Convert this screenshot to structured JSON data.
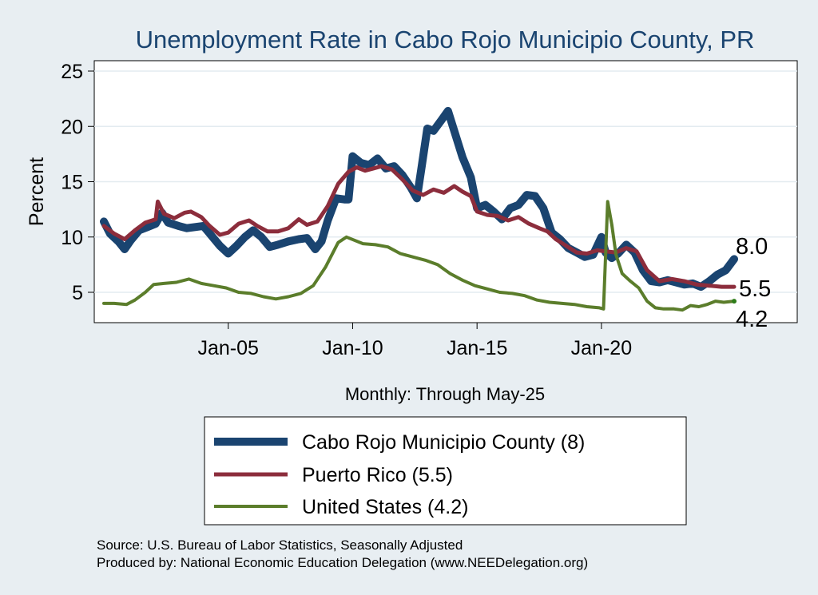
{
  "chart_data": {
    "type": "line",
    "title": "Unemployment Rate in Cabo Rojo Municipio  County, PR",
    "ylabel": "Percent",
    "xlabel": "Monthly: Through May-25",
    "x_range": [
      "2000-01",
      "2025-05"
    ],
    "ylim": [
      3,
      26
    ],
    "yticks": [
      5,
      10,
      15,
      20,
      25
    ],
    "xticks": [
      {
        "label": "Jan-05",
        "date": "2005-01"
      },
      {
        "label": "Jan-10",
        "date": "2010-01"
      },
      {
        "label": "Jan-15",
        "date": "2015-01"
      },
      {
        "label": "Jan-20",
        "date": "2020-01"
      }
    ],
    "grid": "horizontal",
    "legend_position": "bottom",
    "series": [
      {
        "name": "Cabo Rojo Municipio  County (8)",
        "color": "#1a4470",
        "end_label": "8.0",
        "points": [
          [
            "2000-01",
            11.4
          ],
          [
            "2000-04",
            10.3
          ],
          [
            "2000-08",
            9.6
          ],
          [
            "2000-11",
            8.9
          ],
          [
            "2001-02",
            9.7
          ],
          [
            "2001-06",
            10.6
          ],
          [
            "2001-10",
            10.9
          ],
          [
            "2002-02",
            11.2
          ],
          [
            "2002-05",
            12.2
          ],
          [
            "2002-08",
            11.3
          ],
          [
            "2003-01",
            11.0
          ],
          [
            "2003-05",
            10.8
          ],
          [
            "2003-09",
            10.9
          ],
          [
            "2004-01",
            11.0
          ],
          [
            "2004-05",
            10.1
          ],
          [
            "2004-09",
            9.2
          ],
          [
            "2005-01",
            8.5
          ],
          [
            "2005-05",
            9.2
          ],
          [
            "2005-09",
            10.0
          ],
          [
            "2006-01",
            10.6
          ],
          [
            "2006-05",
            10.0
          ],
          [
            "2006-09",
            9.1
          ],
          [
            "2007-01",
            9.3
          ],
          [
            "2007-06",
            9.6
          ],
          [
            "2007-11",
            9.8
          ],
          [
            "2008-03",
            9.9
          ],
          [
            "2008-07",
            8.9
          ],
          [
            "2008-10",
            9.6
          ],
          [
            "2009-01",
            11.5
          ],
          [
            "2009-05",
            13.5
          ],
          [
            "2009-09",
            13.4
          ],
          [
            "2009-11",
            13.4
          ],
          [
            "2010-01",
            17.3
          ],
          [
            "2010-05",
            16.7
          ],
          [
            "2010-09",
            16.5
          ],
          [
            "2011-01",
            17.1
          ],
          [
            "2011-05",
            16.2
          ],
          [
            "2011-09",
            16.4
          ],
          [
            "2012-01",
            15.6
          ],
          [
            "2012-05",
            14.5
          ],
          [
            "2012-08",
            13.5
          ],
          [
            "2012-10",
            16.0
          ],
          [
            "2013-01",
            19.8
          ],
          [
            "2013-04",
            19.6
          ],
          [
            "2013-08",
            20.6
          ],
          [
            "2013-11",
            21.4
          ],
          [
            "2014-02",
            19.6
          ],
          [
            "2014-06",
            17.2
          ],
          [
            "2014-10",
            15.4
          ],
          [
            "2015-01",
            12.6
          ],
          [
            "2015-05",
            12.9
          ],
          [
            "2015-09",
            12.3
          ],
          [
            "2016-01",
            11.6
          ],
          [
            "2016-05",
            12.6
          ],
          [
            "2016-09",
            12.9
          ],
          [
            "2017-01",
            13.8
          ],
          [
            "2017-05",
            13.7
          ],
          [
            "2017-09",
            12.6
          ],
          [
            "2018-01",
            10.4
          ],
          [
            "2018-05",
            9.8
          ],
          [
            "2018-09",
            9.0
          ],
          [
            "2019-01",
            8.6
          ],
          [
            "2019-05",
            8.2
          ],
          [
            "2019-09",
            8.4
          ],
          [
            "2020-01",
            10.0
          ],
          [
            "2020-03",
            8.6
          ],
          [
            "2020-06",
            8.1
          ],
          [
            "2020-09",
            8.5
          ],
          [
            "2021-01",
            9.3
          ],
          [
            "2021-05",
            8.6
          ],
          [
            "2021-09",
            7.0
          ],
          [
            "2022-01",
            6.0
          ],
          [
            "2022-05",
            5.9
          ],
          [
            "2022-09",
            6.1
          ],
          [
            "2023-01",
            5.9
          ],
          [
            "2023-05",
            5.7
          ],
          [
            "2023-09",
            5.8
          ],
          [
            "2024-01",
            5.5
          ],
          [
            "2024-05",
            6.0
          ],
          [
            "2024-09",
            6.6
          ],
          [
            "2025-01",
            7.0
          ],
          [
            "2025-05",
            8.0
          ]
        ]
      },
      {
        "name": "Puerto Rico (5.5)",
        "color": "#8c2d3c",
        "end_label": "5.5",
        "points": [
          [
            "2000-01",
            11.0
          ],
          [
            "2000-06",
            10.3
          ],
          [
            "2000-11",
            9.8
          ],
          [
            "2001-04",
            10.6
          ],
          [
            "2001-09",
            11.3
          ],
          [
            "2002-02",
            11.6
          ],
          [
            "2002-03",
            13.2
          ],
          [
            "2002-06",
            12.1
          ],
          [
            "2002-11",
            11.7
          ],
          [
            "2003-04",
            12.2
          ],
          [
            "2003-07",
            12.3
          ],
          [
            "2003-12",
            11.8
          ],
          [
            "2004-04",
            11.0
          ],
          [
            "2004-09",
            10.2
          ],
          [
            "2005-01",
            10.4
          ],
          [
            "2005-06",
            11.2
          ],
          [
            "2005-11",
            11.5
          ],
          [
            "2006-03",
            11.0
          ],
          [
            "2006-08",
            10.5
          ],
          [
            "2007-01",
            10.5
          ],
          [
            "2007-06",
            10.8
          ],
          [
            "2007-11",
            11.6
          ],
          [
            "2008-03",
            11.1
          ],
          [
            "2008-08",
            11.4
          ],
          [
            "2009-01",
            12.8
          ],
          [
            "2009-06",
            14.8
          ],
          [
            "2009-11",
            15.9
          ],
          [
            "2010-03",
            16.3
          ],
          [
            "2010-07",
            16.0
          ],
          [
            "2010-11",
            16.2
          ],
          [
            "2011-03",
            16.4
          ],
          [
            "2011-08",
            16.1
          ],
          [
            "2012-01",
            15.2
          ],
          [
            "2012-06",
            14.2
          ],
          [
            "2012-11",
            13.8
          ],
          [
            "2013-04",
            14.3
          ],
          [
            "2013-09",
            14.0
          ],
          [
            "2014-02",
            14.6
          ],
          [
            "2014-06",
            14.1
          ],
          [
            "2014-10",
            13.7
          ],
          [
            "2015-01",
            12.3
          ],
          [
            "2015-06",
            12.0
          ],
          [
            "2015-11",
            11.9
          ],
          [
            "2016-04",
            11.5
          ],
          [
            "2016-09",
            11.8
          ],
          [
            "2017-02",
            11.2
          ],
          [
            "2017-07",
            10.8
          ],
          [
            "2017-11",
            10.5
          ],
          [
            "2018-03",
            9.8
          ],
          [
            "2018-08",
            9.2
          ],
          [
            "2019-01",
            8.6
          ],
          [
            "2019-06",
            8.5
          ],
          [
            "2019-11",
            8.8
          ],
          [
            "2020-03",
            8.7
          ],
          [
            "2020-08",
            8.6
          ],
          [
            "2021-01",
            9.0
          ],
          [
            "2021-06",
            8.7
          ],
          [
            "2021-11",
            7.0
          ],
          [
            "2022-05",
            6.0
          ],
          [
            "2022-11",
            6.2
          ],
          [
            "2023-05",
            6.0
          ],
          [
            "2023-11",
            5.7
          ],
          [
            "2024-05",
            5.6
          ],
          [
            "2024-11",
            5.5
          ],
          [
            "2025-05",
            5.5
          ]
        ]
      },
      {
        "name": "United States (4.2)",
        "color": "#5b7d2b",
        "end_label": "4.2",
        "points": [
          [
            "2000-01",
            4.0
          ],
          [
            "2000-06",
            4.0
          ],
          [
            "2000-12",
            3.9
          ],
          [
            "2001-04",
            4.3
          ],
          [
            "2001-09",
            5.0
          ],
          [
            "2002-01",
            5.7
          ],
          [
            "2002-06",
            5.8
          ],
          [
            "2002-12",
            5.9
          ],
          [
            "2003-06",
            6.2
          ],
          [
            "2003-12",
            5.8
          ],
          [
            "2004-06",
            5.6
          ],
          [
            "2004-12",
            5.4
          ],
          [
            "2005-06",
            5.0
          ],
          [
            "2005-12",
            4.9
          ],
          [
            "2006-06",
            4.6
          ],
          [
            "2006-12",
            4.4
          ],
          [
            "2007-06",
            4.6
          ],
          [
            "2007-12",
            4.9
          ],
          [
            "2008-06",
            5.6
          ],
          [
            "2008-12",
            7.3
          ],
          [
            "2009-06",
            9.5
          ],
          [
            "2009-10",
            10.0
          ],
          [
            "2010-06",
            9.4
          ],
          [
            "2010-12",
            9.3
          ],
          [
            "2011-06",
            9.1
          ],
          [
            "2011-12",
            8.5
          ],
          [
            "2012-06",
            8.2
          ],
          [
            "2012-12",
            7.9
          ],
          [
            "2013-06",
            7.5
          ],
          [
            "2013-12",
            6.7
          ],
          [
            "2014-06",
            6.1
          ],
          [
            "2014-12",
            5.6
          ],
          [
            "2015-06",
            5.3
          ],
          [
            "2015-12",
            5.0
          ],
          [
            "2016-06",
            4.9
          ],
          [
            "2016-12",
            4.7
          ],
          [
            "2017-06",
            4.3
          ],
          [
            "2017-12",
            4.1
          ],
          [
            "2018-06",
            4.0
          ],
          [
            "2018-12",
            3.9
          ],
          [
            "2019-06",
            3.7
          ],
          [
            "2019-12",
            3.6
          ],
          [
            "2020-02",
            3.5
          ],
          [
            "2020-04",
            13.2
          ],
          [
            "2020-06",
            11.1
          ],
          [
            "2020-08",
            8.4
          ],
          [
            "2020-11",
            6.7
          ],
          [
            "2021-03",
            6.0
          ],
          [
            "2021-07",
            5.4
          ],
          [
            "2021-11",
            4.2
          ],
          [
            "2022-03",
            3.6
          ],
          [
            "2022-07",
            3.5
          ],
          [
            "2022-12",
            3.5
          ],
          [
            "2023-04",
            3.4
          ],
          [
            "2023-08",
            3.8
          ],
          [
            "2023-12",
            3.7
          ],
          [
            "2024-04",
            3.9
          ],
          [
            "2024-08",
            4.2
          ],
          [
            "2024-12",
            4.1
          ],
          [
            "2025-05",
            4.2
          ]
        ]
      }
    ]
  },
  "footer": {
    "source": "Source: U.S. Bureau of Labor Statistics, Seasonally Adjusted",
    "produced_by": "Produced by: National Economic Education Delegation (www.NEEDelegation.org)"
  }
}
